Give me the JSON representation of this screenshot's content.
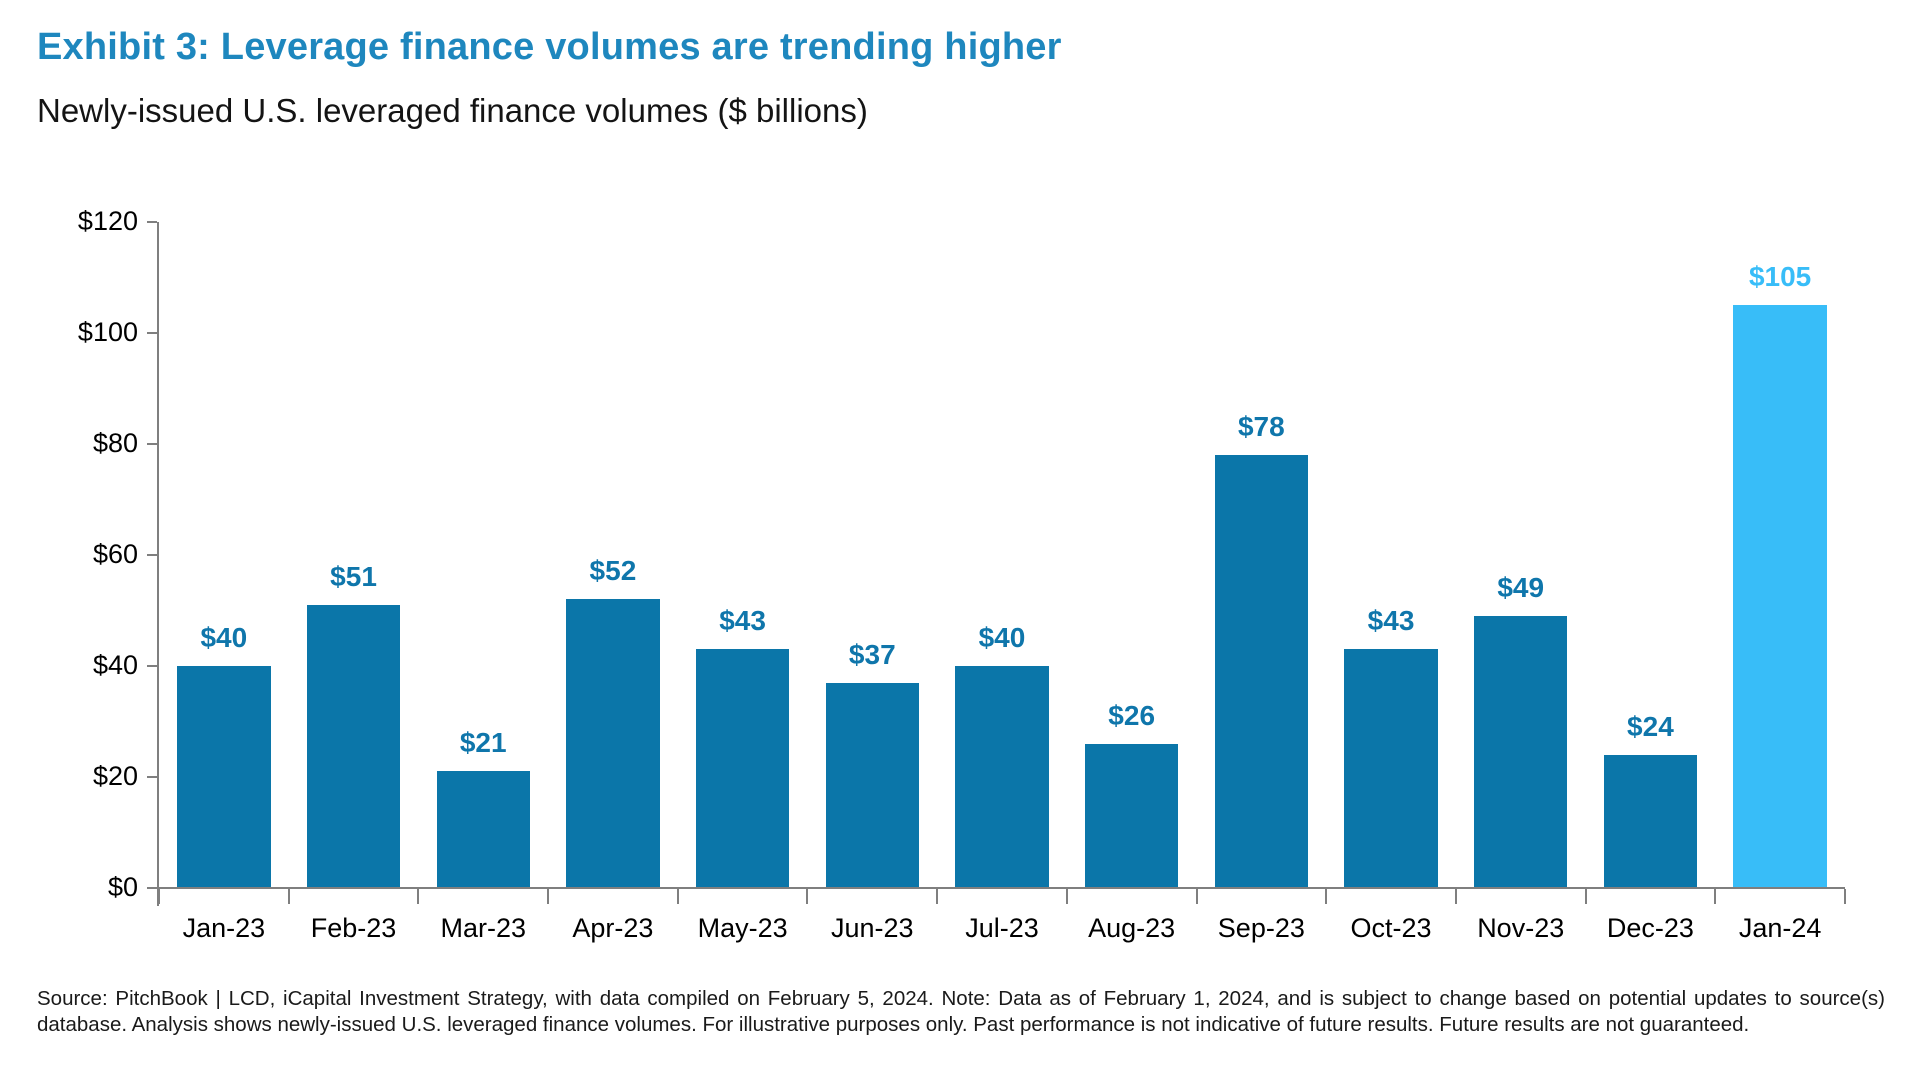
{
  "header": {
    "title": "Exhibit 3: Leverage finance volumes are trending higher",
    "subtitle": "Newly-issued U.S. leveraged finance volumes ($ billions)"
  },
  "chart_data": {
    "type": "bar",
    "title": "Exhibit 3: Leverage finance volumes are trending higher",
    "subtitle": "Newly-issued U.S. leveraged finance volumes ($ billions)",
    "categories": [
      "Jan-23",
      "Feb-23",
      "Mar-23",
      "Apr-23",
      "May-23",
      "Jun-23",
      "Jul-23",
      "Aug-23",
      "Sep-23",
      "Oct-23",
      "Nov-23",
      "Dec-23",
      "Jan-24"
    ],
    "values": [
      40,
      51,
      21,
      52,
      43,
      37,
      40,
      26,
      78,
      43,
      49,
      24,
      105
    ],
    "data_labels": [
      "$40",
      "$51",
      "$21",
      "$52",
      "$43",
      "$37",
      "$40",
      "$26",
      "$78",
      "$43",
      "$49",
      "$24",
      "$105"
    ],
    "highlight_index": 12,
    "ylim": [
      0,
      120
    ],
    "yticks": [
      0,
      20,
      40,
      60,
      80,
      100,
      120
    ],
    "ytick_labels": [
      "$0",
      "$20",
      "$40",
      "$60",
      "$80",
      "$100",
      "$120"
    ],
    "xlabel": "",
    "ylabel": "",
    "grid": false,
    "legend_position": "none",
    "colors": {
      "bar": "#0B76A9",
      "bar_highlight": "#38BDF8",
      "data_label": "#0F76AB",
      "data_label_highlight": "#38BDF8",
      "axis": "#7F7F7F",
      "tick_text": "#000000",
      "title": "#1E87BE",
      "subtitle_text": "#141414"
    }
  },
  "footer": {
    "source": "Source: PitchBook | LCD, iCapital Investment Strategy, with data compiled on February 5, 2024. Note: Data as of February 1, 2024, and is subject to change based on potential updates to source(s) database. Analysis shows newly-issued U.S. leveraged finance volumes. For illustrative purposes only. Past performance is not indicative of future results. Future results are not guaranteed."
  }
}
